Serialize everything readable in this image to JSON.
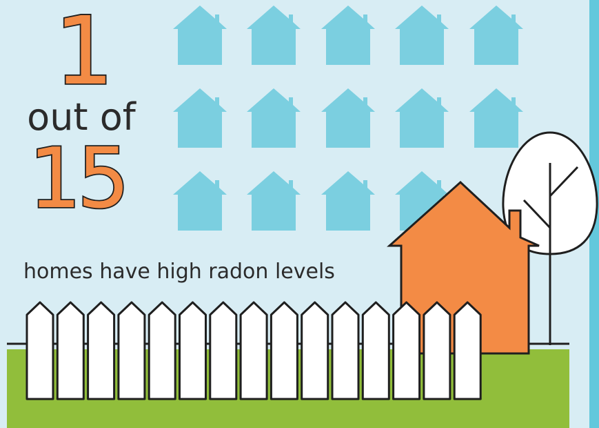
{
  "headline": {
    "highlight_number": "1",
    "connector": "out of",
    "total_number": "15",
    "caption": "homes have high radon levels"
  },
  "colors": {
    "sky": "#d8edf4",
    "accent_bar": "#63c8dc",
    "house_icon": "#7bcfe0",
    "orange": "#f38b45",
    "grass": "#91be3b",
    "outline": "#1f1f1f",
    "fence": "#ffffff",
    "tree": "#ffffff"
  },
  "illustration": {
    "icon_grid_rows": 3,
    "icon_grid_cols": 5,
    "icon_grid_partial_last": 4,
    "fence_pickets": 15,
    "highlight_house_color": "orange"
  }
}
